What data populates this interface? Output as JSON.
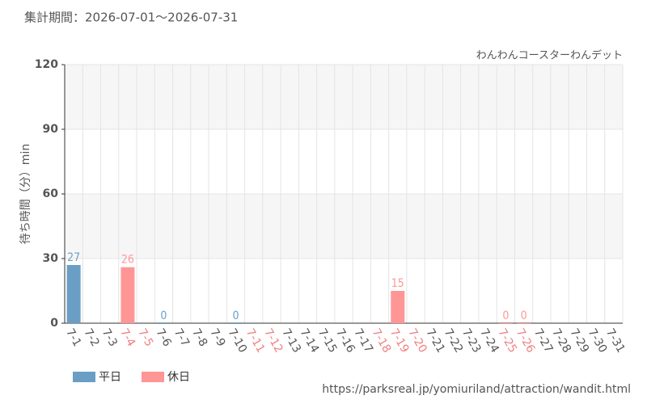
{
  "chart_data": {
    "type": "bar",
    "title": "集計期間：2026-07-01～2026-07-31",
    "subtitle": "わんわんコースターわんデット",
    "y_label": "待ち時間（分）min",
    "source": "https://parksreal.jp/yomiuriland/attraction/wandit.html",
    "categories": [
      "7-1",
      "7-2",
      "7-3",
      "7-4",
      "7-5",
      "7-6",
      "7-7",
      "7-8",
      "7-9",
      "7-10",
      "7-11",
      "7-12",
      "7-13",
      "7-14",
      "7-15",
      "7-16",
      "7-17",
      "7-18",
      "7-19",
      "7-20",
      "7-21",
      "7-22",
      "7-23",
      "7-24",
      "7-25",
      "7-26",
      "7-27",
      "7-28",
      "7-29",
      "7-30",
      "7-31"
    ],
    "category_colors": [
      "#555",
      "#555",
      "#555",
      "#f08080",
      "#f08080",
      "#555",
      "#555",
      "#555",
      "#555",
      "#555",
      "#f08080",
      "#f08080",
      "#555",
      "#555",
      "#555",
      "#555",
      "#555",
      "#f08080",
      "#f08080",
      "#f08080",
      "#555",
      "#555",
      "#555",
      "#555",
      "#f08080",
      "#f08080",
      "#555",
      "#555",
      "#555",
      "#555",
      "#555"
    ],
    "series": [
      {
        "name": "平日",
        "color": "#6a9ec5",
        "values": [
          27,
          null,
          null,
          null,
          null,
          0,
          null,
          null,
          null,
          0,
          null,
          null,
          null,
          null,
          null,
          null,
          null,
          null,
          null,
          null,
          null,
          null,
          null,
          null,
          null,
          null,
          null,
          null,
          null,
          null,
          null
        ]
      },
      {
        "name": "休日",
        "color": "#ff9696",
        "values": [
          null,
          null,
          null,
          26,
          null,
          null,
          null,
          null,
          null,
          null,
          null,
          null,
          null,
          null,
          null,
          null,
          null,
          null,
          15,
          null,
          null,
          null,
          null,
          null,
          0,
          0,
          null,
          null,
          null,
          null,
          null
        ]
      }
    ],
    "ylim": [
      0,
      120
    ],
    "yticks": [
      0,
      30,
      60,
      90,
      120
    ],
    "grid": true,
    "legend": "bottom-left"
  }
}
